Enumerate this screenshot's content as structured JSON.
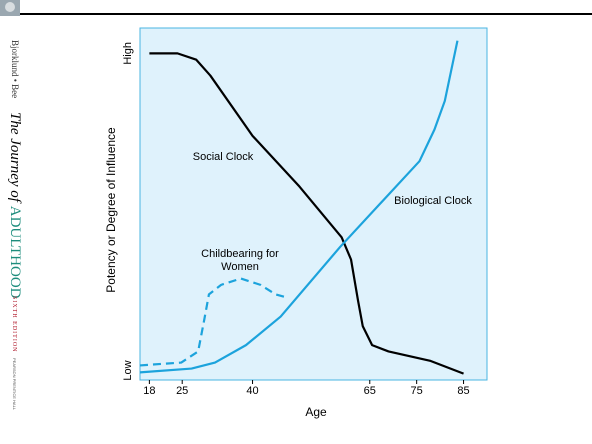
{
  "sidebar": {
    "authors": "Bjorklund • Bee",
    "title_prefix": "The Journey of",
    "title_main": "ADULTHOOD",
    "edition": "SIXTH EDITION",
    "publisher": "PEARSON PRENTICE HALL"
  },
  "chart_data": {
    "type": "line",
    "x_label": "Age",
    "y_label": "Potency or Degree of Influence",
    "xlim": [
      16,
      90
    ],
    "xticks": [
      18,
      25,
      40,
      65,
      75,
      85
    ],
    "ylim": [
      -3,
      108
    ],
    "yticks": [
      {
        "value": 0,
        "label": "Low"
      },
      {
        "value": 100,
        "label": "High"
      }
    ],
    "series": [
      {
        "name": "Social Clock",
        "color": "#000000",
        "dashed": false,
        "x": [
          18,
          24,
          28,
          31,
          40,
          50,
          59,
          61,
          62.5,
          63.5,
          65.5,
          69,
          78,
          85
        ],
        "values": [
          100,
          100,
          98,
          93,
          74,
          58,
          42,
          35,
          22,
          14,
          8,
          6,
          3,
          -1
        ]
      },
      {
        "name": "Biological Clock",
        "color": "#1ca3dc",
        "dashed": false,
        "x": [
          16,
          27,
          32,
          38.6,
          46,
          58.7,
          75.6,
          78.8,
          81,
          83.7
        ],
        "values": [
          -0.6,
          0.6,
          2.5,
          8,
          17,
          39,
          66,
          76,
          85,
          104
        ]
      },
      {
        "name": "Childbearing for Women",
        "color": "#1ca3dc",
        "dashed": true,
        "x": [
          16,
          24.8,
          28.4,
          29.7,
          30.7,
          33.3,
          37.5,
          41.7,
          44.9,
          47.4
        ],
        "values": [
          1.6,
          2.5,
          6,
          16,
          24,
          27,
          29,
          27,
          24,
          23
        ]
      }
    ]
  }
}
